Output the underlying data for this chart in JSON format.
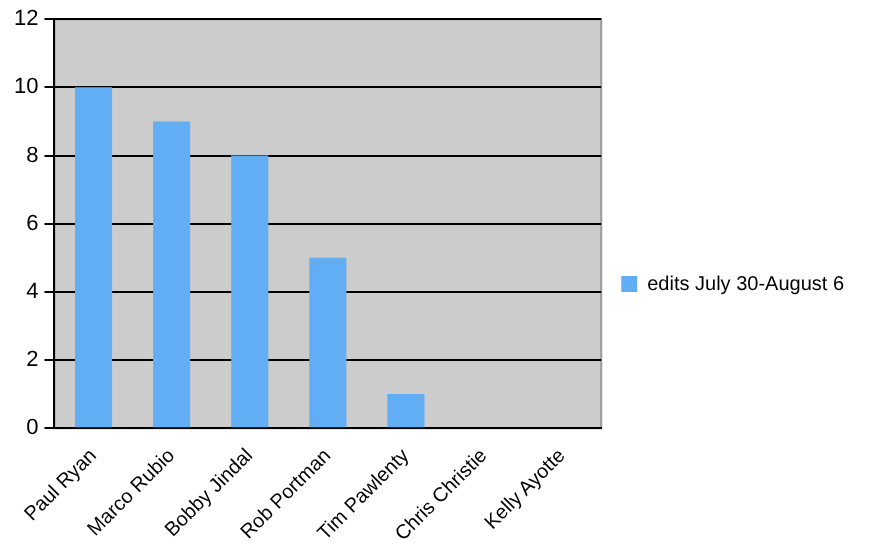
{
  "chart_data": {
    "type": "bar",
    "categories": [
      "Paul Ryan",
      "Marco Rubio",
      "Bobby Jindal",
      "Rob Portman",
      "Tim Pawlenty",
      "Chris Christie",
      "Kelly Ayotte"
    ],
    "series": [
      {
        "name": "edits July 30-August 6",
        "color": "#62aef5",
        "values": [
          10,
          9,
          8,
          5,
          1,
          0,
          0
        ]
      }
    ],
    "ylim": [
      0,
      12
    ],
    "yticks": [
      0,
      2,
      4,
      6,
      8,
      10,
      12
    ],
    "grid": "y",
    "legend": "right"
  }
}
